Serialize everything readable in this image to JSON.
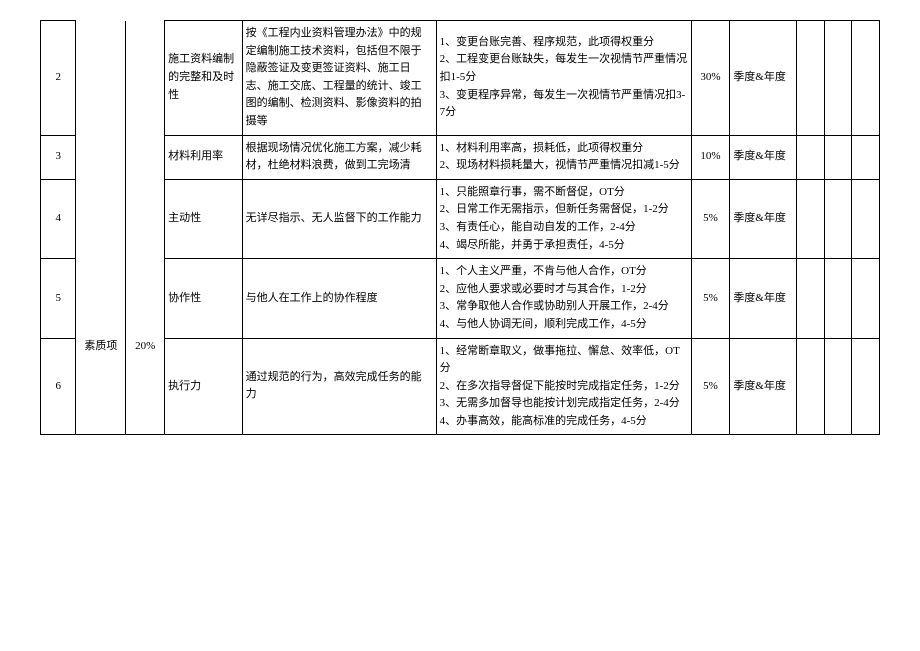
{
  "rows": [
    {
      "idx": "2",
      "item": "施工资料编制的完整和及时性",
      "desc": "按《工程内业资料管理办法》中的规定编制施工技术资料，包括但不限于隐蔽签证及变更签证资料、施工日志、施工交底、工程量的统计、竣工图的编制、检测资料、影像资料的拍摄等",
      "criteria_lines": [
        "1、变更台账完善、程序规范，此项得权重分",
        "2、工程变更台账缺失，每发生一次视情节严重情况扣1-5分",
        "3、变更程序异常，每发生一次视情节严重情况扣3-7分"
      ],
      "weight": "30%",
      "period": "季度&年度"
    },
    {
      "idx": "3",
      "item": "材料利用率",
      "desc": "根据现场情况优化施工方案，减少耗材，杜绝材料浪费，做到工完场清",
      "criteria_lines": [
        "1、材料利用率高，损耗低，此项得权重分",
        "2、现场材料损耗量大，视情节严重情况扣减1-5分"
      ],
      "weight": "10%",
      "period": "季度&年度"
    },
    {
      "idx": "4",
      "item": "主动性",
      "desc": "无详尽指示、无人监督下的工作能力",
      "criteria_lines": [
        "1、只能照章行事，需不断督促，OT分",
        "2、日常工作无需指示，但新任务需督促，1-2分",
        "3、有责任心，能自动自发的工作，2-4分",
        "4、竭尽所能，并勇于承担责任，4-5分"
      ],
      "weight": "5%",
      "period": "季度&年度"
    },
    {
      "idx": "5",
      "item": "协作性",
      "desc": "与他人在工作上的协作程度",
      "criteria_lines": [
        "1、个人主义严重，不肯与他人合作，OT分",
        "2、应他人要求或必要时才与其合作，1-2分",
        "3、常争取他人合作或协助别人开展工作，2-4分",
        "4、与他人协调无间，顺利完成工作，4-5分"
      ],
      "weight": "5%",
      "period": "季度&年度"
    },
    {
      "idx": "6",
      "item": "执行力",
      "desc": "通过规范的行为，高效完成任务的能力",
      "criteria_lines": [
        "1、经常断章取义，做事拖拉、懈怠、效率低，OT分",
        "2、在多次指导督促下能按时完成指定任务，1-2分",
        "3、无需多加督导也能按计划完成指定任务，2-4分",
        "4、办事高效，能高标准的完成任务，4-5分"
      ],
      "weight": "5%",
      "period": "季度&年度"
    }
  ],
  "category": {
    "name": "素质项",
    "percent": "20%"
  }
}
